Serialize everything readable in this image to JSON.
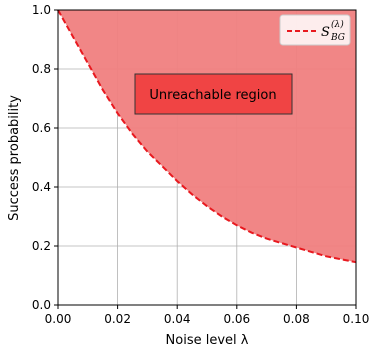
{
  "chart_data": {
    "type": "area",
    "xlabel": "Noise level λ",
    "ylabel": "Success probability",
    "xlim": [
      0.0,
      0.1
    ],
    "ylim": [
      0.0,
      1.0
    ],
    "x_ticks": [
      "0.00",
      "0.02",
      "0.04",
      "0.06",
      "0.08",
      "0.10"
    ],
    "y_ticks": [
      "0.0",
      "0.2",
      "0.4",
      "0.6",
      "0.8",
      "1.0"
    ],
    "grid": true,
    "legend_position": "top-right",
    "series": [
      {
        "name_base": "S",
        "name_sub": "BG",
        "name_sup": "(λ)",
        "style": "dashed",
        "color": "#e8191f",
        "x": [
          0.0,
          0.005,
          0.01,
          0.015,
          0.02,
          0.025,
          0.03,
          0.035,
          0.04,
          0.045,
          0.05,
          0.055,
          0.06,
          0.065,
          0.07,
          0.075,
          0.08,
          0.085,
          0.09,
          0.095,
          0.1
        ],
        "y": [
          1.0,
          0.91,
          0.82,
          0.73,
          0.65,
          0.58,
          0.52,
          0.47,
          0.42,
          0.375,
          0.335,
          0.3,
          0.27,
          0.245,
          0.225,
          0.21,
          0.195,
          0.18,
          0.165,
          0.155,
          0.145
        ]
      }
    ],
    "fill_region": {
      "color": "#f08080",
      "label": "Unreachable region",
      "label_box_color": "#f04444"
    }
  }
}
